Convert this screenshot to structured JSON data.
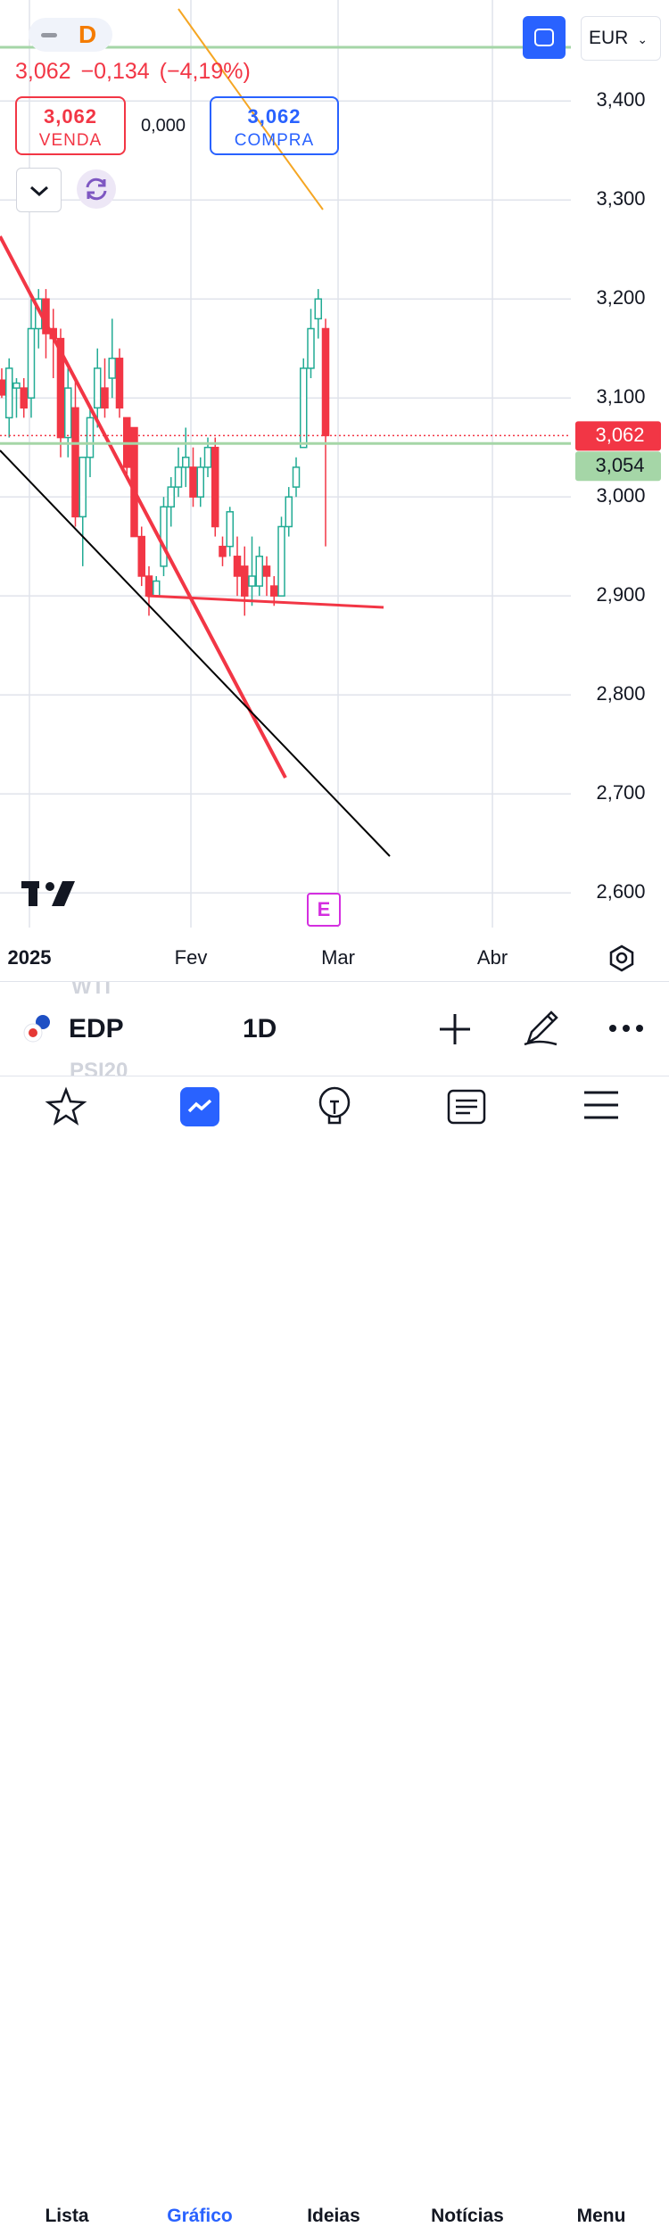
{
  "header": {
    "badge": "D",
    "quote": "3,062",
    "change": "−0,134",
    "change_pct": "(−4,19%)",
    "sell_price": "3,062",
    "sell_label": "VENDA",
    "spread": "0,000",
    "buy_price": "3,062",
    "buy_label": "COMPRA",
    "currency": "EUR"
  },
  "chart_data": {
    "type": "candlestick",
    "categories": [
      null,
      null,
      null,
      null,
      null,
      null,
      null,
      null,
      null,
      null,
      null,
      null,
      null,
      null,
      null,
      null,
      null,
      null,
      null,
      null,
      null,
      null,
      null,
      null,
      null,
      null,
      null,
      null,
      null,
      null,
      null,
      null,
      null,
      null,
      null,
      null,
      null,
      null,
      null,
      null,
      null,
      null,
      null,
      null,
      null
    ],
    "open": [
      3.118,
      3.08,
      3.11,
      3.11,
      3.1,
      3.17,
      3.2,
      3.17,
      3.16,
      3.06,
      3.09,
      2.98,
      3.04,
      3.09,
      3.11,
      3.12,
      3.14,
      3.08,
      3.07,
      2.96,
      2.92,
      2.9,
      2.93,
      2.99,
      3.01,
      3.03,
      3.03,
      3.0,
      3.03,
      3.05,
      2.95,
      2.95,
      2.94,
      2.93,
      2.91,
      2.91,
      2.93,
      2.91,
      2.9,
      2.97,
      3.01,
      3.05,
      3.13,
      3.18,
      3.17
    ],
    "high": [
      3.13,
      3.14,
      3.12,
      3.12,
      3.2,
      3.21,
      3.21,
      3.19,
      3.17,
      3.13,
      3.12,
      3.04,
      3.09,
      3.15,
      3.14,
      3.18,
      3.15,
      3.08,
      3.07,
      2.97,
      2.93,
      2.92,
      3.0,
      3.02,
      3.05,
      3.07,
      3.05,
      3.04,
      3.06,
      3.06,
      2.96,
      2.99,
      2.96,
      2.95,
      2.96,
      2.95,
      2.94,
      2.92,
      2.98,
      3.01,
      3.04,
      3.14,
      3.19,
      3.21,
      3.18
    ],
    "low": [
      3.1,
      3.06,
      3.08,
      3.08,
      3.08,
      3.15,
      3.14,
      3.12,
      3.04,
      3.04,
      2.97,
      2.93,
      3.02,
      3.07,
      3.08,
      3.1,
      3.08,
      3.02,
      2.96,
      2.91,
      2.88,
      2.9,
      2.92,
      2.97,
      3.0,
      3.01,
      2.99,
      2.99,
      3.02,
      2.96,
      2.93,
      2.94,
      2.9,
      2.88,
      2.89,
      2.9,
      2.9,
      2.89,
      2.9,
      2.96,
      3.0,
      3.05,
      3.12,
      3.16,
      2.95
    ],
    "close": [
      3.103,
      3.13,
      3.115,
      3.09,
      3.17,
      3.2,
      3.165,
      3.16,
      3.06,
      3.11,
      2.98,
      3.04,
      3.08,
      3.13,
      3.09,
      3.14,
      3.09,
      3.03,
      2.96,
      2.92,
      2.9,
      2.915,
      2.99,
      3.01,
      3.03,
      3.04,
      3.0,
      3.03,
      3.05,
      2.97,
      2.94,
      2.985,
      2.92,
      2.9,
      2.92,
      2.94,
      2.92,
      2.9,
      2.97,
      3.0,
      3.03,
      3.13,
      3.17,
      3.2,
      3.062
    ],
    "up_color": "#22ab94",
    "down_color": "#f23645",
    "ylim": [
      2.565,
      3.502
    ],
    "yticks": [
      {
        "value": 2.6,
        "label": "2,600"
      },
      {
        "value": 2.7,
        "label": "2,700"
      },
      {
        "value": 2.8,
        "label": "2,800"
      },
      {
        "value": 2.9,
        "label": "2,900"
      },
      {
        "value": 3.0,
        "label": "3,000"
      },
      {
        "value": 3.1,
        "label": "3,100"
      },
      {
        "value": 3.2,
        "label": "3,200"
      },
      {
        "value": 3.3,
        "label": "3,300"
      },
      {
        "value": 3.4,
        "label": "3,400"
      }
    ],
    "xlim": [
      -0.24,
      77.33
    ],
    "xticks": [
      {
        "value": 3.76,
        "label": "2025"
      },
      {
        "value": 25.7,
        "label": "Fev"
      },
      {
        "value": 45.7,
        "label": "Mar"
      },
      {
        "value": 66.67,
        "label": "Abr"
      }
    ],
    "grid": true,
    "price_lines": [
      {
        "value": 3.062,
        "label": "3,062",
        "color": "#f23645"
      },
      {
        "value": 3.054,
        "label": "3,054",
        "color": "#a5d6a7"
      }
    ],
    "event_marker": "E"
  },
  "toolbar": {
    "prev_symbol": "WTI",
    "symbol": "EDP",
    "interval": "1D",
    "next_symbol": "PSI20"
  },
  "tabs": [
    "Lista",
    "Gráfico",
    "Ideias",
    "Notícias",
    "Menu"
  ]
}
